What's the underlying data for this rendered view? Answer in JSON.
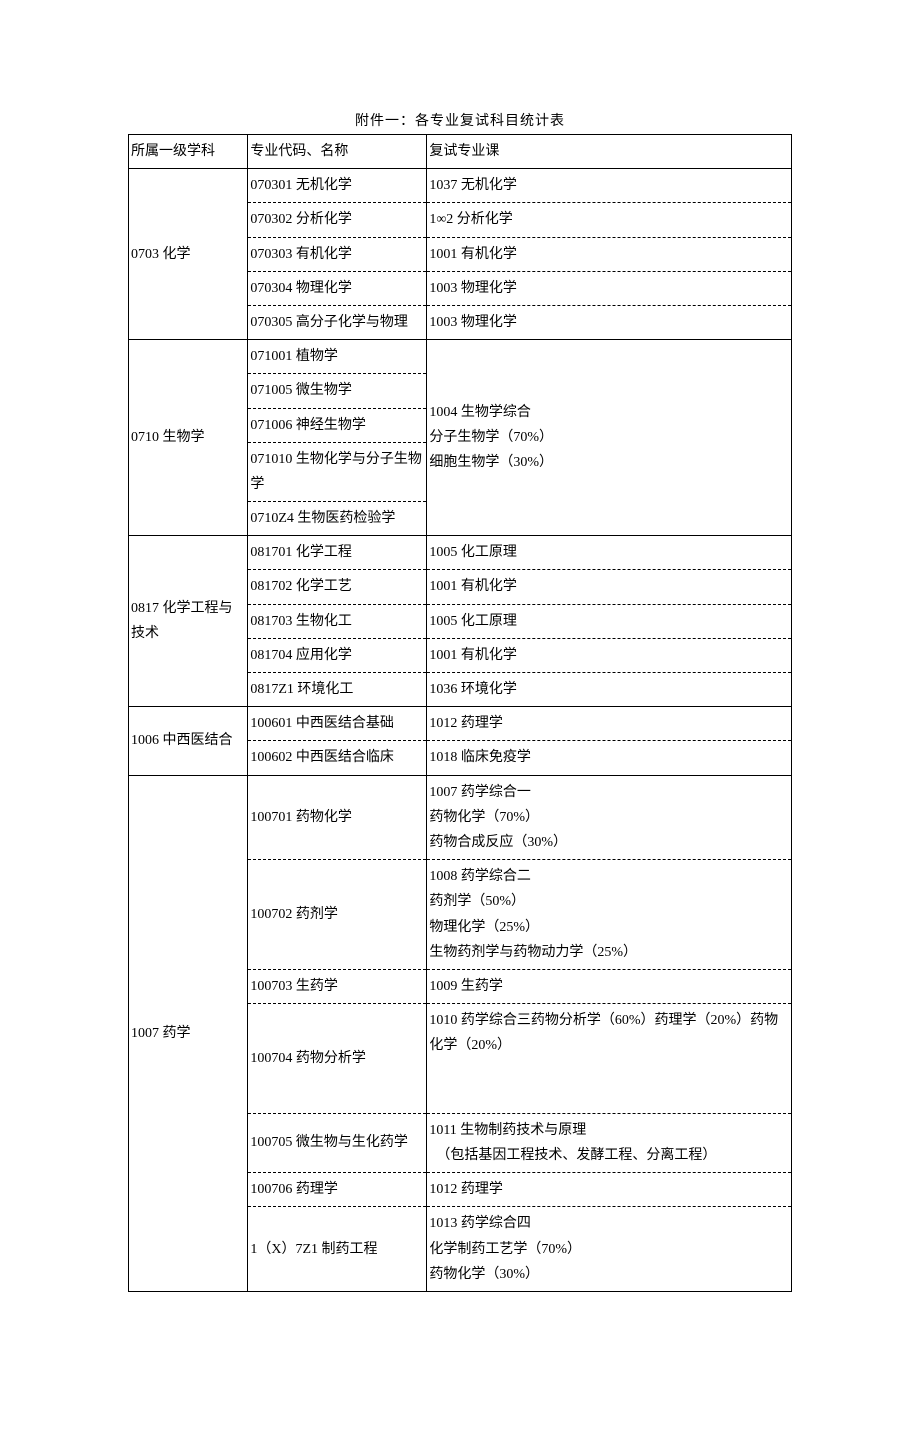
{
  "title": "附件一：各专业复试科目统计表",
  "headers": {
    "discipline": "所属一级学科",
    "major": "专业代码、名称",
    "course": "复试专业课"
  },
  "table": {
    "g1": {
      "discipline": "0703 化学",
      "rows": [
        {
          "major": "070301 无机化学",
          "course": "1037 无机化学"
        },
        {
          "major": "070302 分析化学",
          "course": "1∞2 分析化学"
        },
        {
          "major": "070303 有机化学",
          "course": "1001 有机化学"
        },
        {
          "major": "070304 物理化学",
          "course": "1003 物理化学"
        },
        {
          "major": "070305 高分子化学与物理",
          "course": "1003 物理化学"
        }
      ]
    },
    "g2": {
      "discipline": "0710 生物学",
      "course_lines": [
        "1004 生物学综合",
        "分子生物学（70%）",
        "细胞生物学（30%）"
      ],
      "rows": [
        {
          "major": "071001 植物学"
        },
        {
          "major": "071005 微生物学"
        },
        {
          "major": "071006 神经生物学"
        },
        {
          "major": "071010 生物化学与分子生物学"
        },
        {
          "major": "0710Z4 生物医药检验学"
        }
      ]
    },
    "g3": {
      "discipline": "0817 化学工程与技术",
      "rows": [
        {
          "major": "081701 化学工程",
          "course": "1005 化工原理"
        },
        {
          "major": "081702 化学工艺",
          "course": "1001 有机化学"
        },
        {
          "major": "081703 生物化工",
          "course": "1005 化工原理"
        },
        {
          "major": "081704 应用化学",
          "course": "1001 有机化学"
        },
        {
          "major": "0817Z1 环境化工",
          "course": "1036 环境化学"
        }
      ]
    },
    "g4": {
      "discipline": "1006 中西医结合",
      "rows": [
        {
          "major": "100601 中西医结合基础",
          "course": "1012 药理学"
        },
        {
          "major": "100602 中西医结合临床",
          "course": "1018 临床免疫学"
        }
      ]
    },
    "g5": {
      "discipline": "1007 药学",
      "rows": [
        {
          "major": "100701 药物化学",
          "course_lines": [
            "1007 药学综合一",
            "药物化学（70%）",
            "药物合成反应（30%）"
          ]
        },
        {
          "major": "100702 药剂学",
          "course_lines": [
            "1008 药学综合二",
            "药剂学（50%）",
            "物理化学（25%）",
            "生物药剂学与药物动力学（25%）"
          ]
        },
        {
          "major": "100703 生药学",
          "course": "1009 生药学"
        },
        {
          "major": "100704 药物分析学",
          "course_lines": [
            "1010 药学综合三药物分析学（60%）药理学（20%）药物化学（20%）",
            "　",
            "　"
          ]
        },
        {
          "major": "100705 微生物与生化药学",
          "course_lines": [
            "1011 生物制药技术与原理",
            "　（包括基因工程技术、发酵工程、分离工程）"
          ]
        },
        {
          "major": "100706 药理学",
          "course": "1012 药理学"
        },
        {
          "major": "1（X）7Z1 制药工程",
          "course_lines": [
            "1013 药学综合四",
            "化学制药工艺学（70%）",
            "药物化学（30%）"
          ]
        }
      ]
    }
  }
}
